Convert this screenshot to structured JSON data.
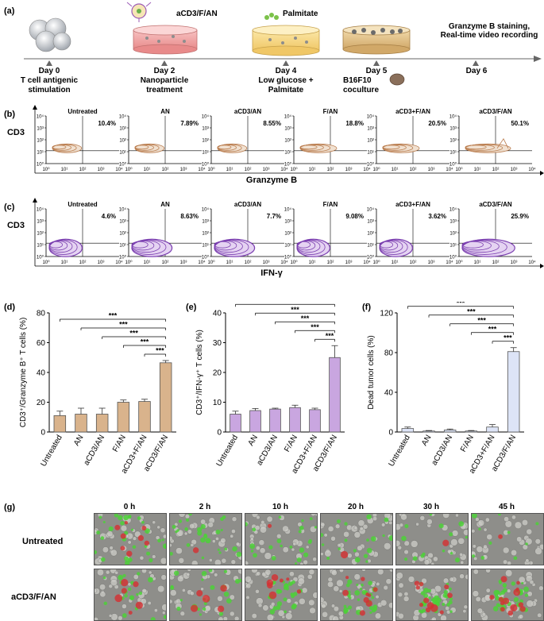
{
  "panel_a": {
    "letter": "(a)",
    "steps": [
      {
        "day": "Day 0",
        "desc": [
          "T cell antigenic",
          "stimulation"
        ]
      },
      {
        "day": "Day 2",
        "desc": [
          "Nanoparticle",
          "treatment"
        ],
        "top": "aCD3/F/AN"
      },
      {
        "day": "Day 4",
        "desc": [
          "Low glucose +",
          "Palmitate"
        ],
        "top": "Palmitate"
      },
      {
        "day": "Day 5",
        "desc": [
          "B16F10",
          "coculture"
        ]
      },
      {
        "day": "Day 6",
        "desc": [],
        "top2": [
          "Granzyme B staining,",
          "Real-time video recording"
        ]
      }
    ]
  },
  "panel_b": {
    "letter": "(b)",
    "ylabel": "CD3",
    "xlabel": "Granzyme B",
    "groups": [
      "Untreated",
      "AN",
      "aCD3/AN",
      "F/AN",
      "aCD3+F/AN",
      "aCD3/F/AN"
    ],
    "percents": [
      "10.4%",
      "7.89%",
      "8.55%",
      "18.8%",
      "20.5%",
      "50.1%"
    ],
    "color": "#b87a4b"
  },
  "panel_c": {
    "letter": "(c)",
    "ylabel": "CD3",
    "xlabel": "IFN-γ",
    "groups": [
      "Untreated",
      "AN",
      "aCD3/AN",
      "F/AN",
      "aCD3+F/AN",
      "aCD3/F/AN"
    ],
    "percents": [
      "4.6%",
      "8.63%",
      "7.7%",
      "9.08%",
      "3.62%",
      "25.9%"
    ],
    "color": "#7b3fb0"
  },
  "flow_ticks": [
    "10⁰",
    "10¹",
    "10²",
    "10³",
    "10⁴"
  ],
  "significance": "***",
  "chart_data": [
    {
      "type": "bar",
      "panel": "(d)",
      "categories": [
        "Untreated",
        "AN",
        "aCD3/AN",
        "F/AN",
        "aCD3+F/AN",
        "aCD3/F/AN"
      ],
      "values": [
        11,
        12,
        12,
        20,
        20.5,
        46.5
      ],
      "errors": [
        3,
        4,
        4,
        1.5,
        1.5,
        1.5
      ],
      "ylabel": "CD3⁺/Granzyme B⁺ T cells (%)",
      "ylim": [
        0,
        80
      ],
      "yticks": [
        0,
        20,
        40,
        60,
        80
      ],
      "color": "#d9b38c"
    },
    {
      "type": "bar",
      "panel": "(e)",
      "categories": [
        "Untreated",
        "AN",
        "aCD3/AN",
        "F/AN",
        "aCD3+F/AN",
        "aCD3/F/AN"
      ],
      "values": [
        6,
        7.2,
        7.7,
        8.2,
        7.5,
        25
      ],
      "errors": [
        1,
        0.7,
        0.3,
        0.8,
        0.5,
        4
      ],
      "ylabel": "CD3⁺/IFN-γ⁺ T cells (%)",
      "ylim": [
        0,
        40
      ],
      "yticks": [
        0,
        10,
        20,
        30,
        40
      ],
      "color": "#c9a6e0"
    },
    {
      "type": "bar",
      "panel": "(f)",
      "categories": [
        "Untreated",
        "AN",
        "aCD3/AN",
        "F/AN",
        "aCD3+F/AN",
        "aCD3/F/AN"
      ],
      "values": [
        3.5,
        1,
        2,
        1,
        5,
        81
      ],
      "errors": [
        1.5,
        0.5,
        1,
        0.5,
        2.5,
        4
      ],
      "ylabel": "Dead tumor cells (%)",
      "ylim": [
        0,
        120
      ],
      "yticks": [
        0,
        40,
        80,
        120
      ],
      "color": "#dde4f7"
    }
  ],
  "panel_g": {
    "letter": "(g)",
    "times": [
      "0 h",
      "2 h",
      "10 h",
      "20 h",
      "30 h",
      "45 h"
    ],
    "rows": [
      "Untreated",
      "aCD3/F/AN"
    ]
  }
}
